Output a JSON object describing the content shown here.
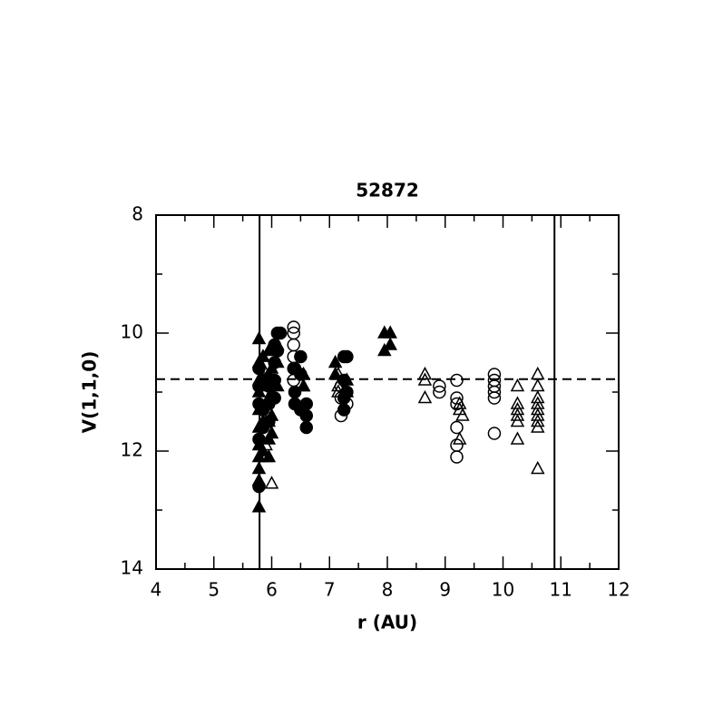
{
  "chart_data": {
    "type": "scatter",
    "title": "52872",
    "xlabel": "r (AU)",
    "ylabel": "V(1,1,0)",
    "xlim": [
      4,
      12
    ],
    "xticks": [
      4,
      5,
      6,
      7,
      8,
      9,
      10,
      11,
      12
    ],
    "ylim": [
      14,
      8
    ],
    "yticks": [
      8,
      10,
      12,
      14
    ],
    "vlines": [
      5.79,
      10.89
    ],
    "hline": 10.78,
    "series": [
      {
        "marker": "triangle",
        "filled": true,
        "color": "#000000",
        "x": [
          5.78,
          5.78,
          5.78,
          5.78,
          5.78,
          5.78,
          5.78,
          5.78,
          5.78,
          5.78,
          5.78,
          5.85,
          5.85,
          5.85,
          5.85,
          5.95,
          5.95,
          5.95,
          5.95,
          5.95,
          5.95,
          6.0,
          6.0,
          6.0,
          6.0,
          6.1,
          6.1,
          6.1,
          6.55,
          6.55,
          7.1,
          7.1,
          7.3,
          7.3,
          7.95,
          7.95,
          8.05,
          8.05
        ],
        "values": [
          10.1,
          10.5,
          10.8,
          11.0,
          11.3,
          11.6,
          11.9,
          12.1,
          12.3,
          12.5,
          12.95,
          10.4,
          10.9,
          11.5,
          12.0,
          10.3,
          10.7,
          11.1,
          11.5,
          11.8,
          12.1,
          10.6,
          11.0,
          11.4,
          11.7,
          10.2,
          10.5,
          10.9,
          10.7,
          10.9,
          10.5,
          10.7,
          10.8,
          11.0,
          10.0,
          10.3,
          10.0,
          10.2
        ]
      },
      {
        "marker": "circle",
        "filled": true,
        "color": "#000000",
        "x": [
          5.78,
          5.78,
          5.78,
          5.78,
          5.78,
          5.85,
          5.85,
          5.85,
          5.95,
          5.95,
          5.95,
          6.05,
          6.05,
          6.05,
          6.05,
          6.1,
          6.1,
          6.15,
          6.4,
          6.4,
          6.4,
          6.5,
          6.5,
          6.5,
          6.6,
          6.6,
          6.6,
          7.25,
          7.25,
          7.25,
          7.25,
          7.3,
          7.3
        ],
        "values": [
          12.6,
          11.8,
          11.2,
          10.9,
          10.6,
          10.8,
          11.3,
          11.6,
          10.9,
          11.2,
          11.5,
          10.2,
          10.5,
          10.8,
          11.1,
          10.0,
          10.3,
          10.0,
          10.6,
          11.0,
          11.2,
          10.4,
          10.7,
          11.3,
          11.2,
          11.4,
          11.6,
          10.4,
          10.8,
          11.1,
          11.3,
          10.4,
          11.0
        ]
      },
      {
        "marker": "circle",
        "filled": false,
        "color": "#000000",
        "x": [
          6.38,
          6.38,
          6.38,
          6.38,
          6.38,
          6.38,
          7.2,
          7.2,
          7.2,
          7.3,
          8.9,
          8.9,
          9.2,
          9.2,
          9.2,
          9.2,
          9.2,
          9.2,
          9.85,
          9.85,
          9.85,
          9.85,
          9.85,
          9.85
        ],
        "values": [
          9.9,
          10.0,
          10.2,
          10.4,
          10.6,
          10.8,
          10.9,
          11.1,
          11.4,
          11.2,
          10.9,
          11.0,
          10.8,
          11.1,
          11.2,
          11.6,
          11.9,
          12.1,
          10.7,
          10.8,
          10.9,
          11.0,
          11.1,
          11.7
        ]
      },
      {
        "marker": "triangle",
        "filled": false,
        "color": "#000000",
        "x": [
          5.85,
          5.85,
          5.9,
          5.9,
          6.0,
          6.55,
          7.15,
          7.15,
          7.15,
          8.65,
          8.65,
          8.65,
          9.25,
          9.25,
          9.25,
          9.3,
          10.25,
          10.25,
          10.25,
          10.25,
          10.25,
          10.25,
          10.6,
          10.6,
          10.6,
          10.6,
          10.6,
          10.6,
          10.6,
          10.6,
          10.6
        ],
        "values": [
          10.4,
          10.6,
          11.9,
          12.1,
          12.55,
          10.9,
          10.7,
          11.0,
          10.9,
          10.7,
          10.8,
          11.1,
          11.2,
          11.3,
          11.8,
          11.4,
          10.9,
          11.2,
          11.3,
          11.4,
          11.5,
          11.8,
          10.7,
          10.9,
          11.1,
          11.2,
          11.3,
          11.4,
          11.5,
          11.6,
          12.3
        ]
      }
    ]
  }
}
